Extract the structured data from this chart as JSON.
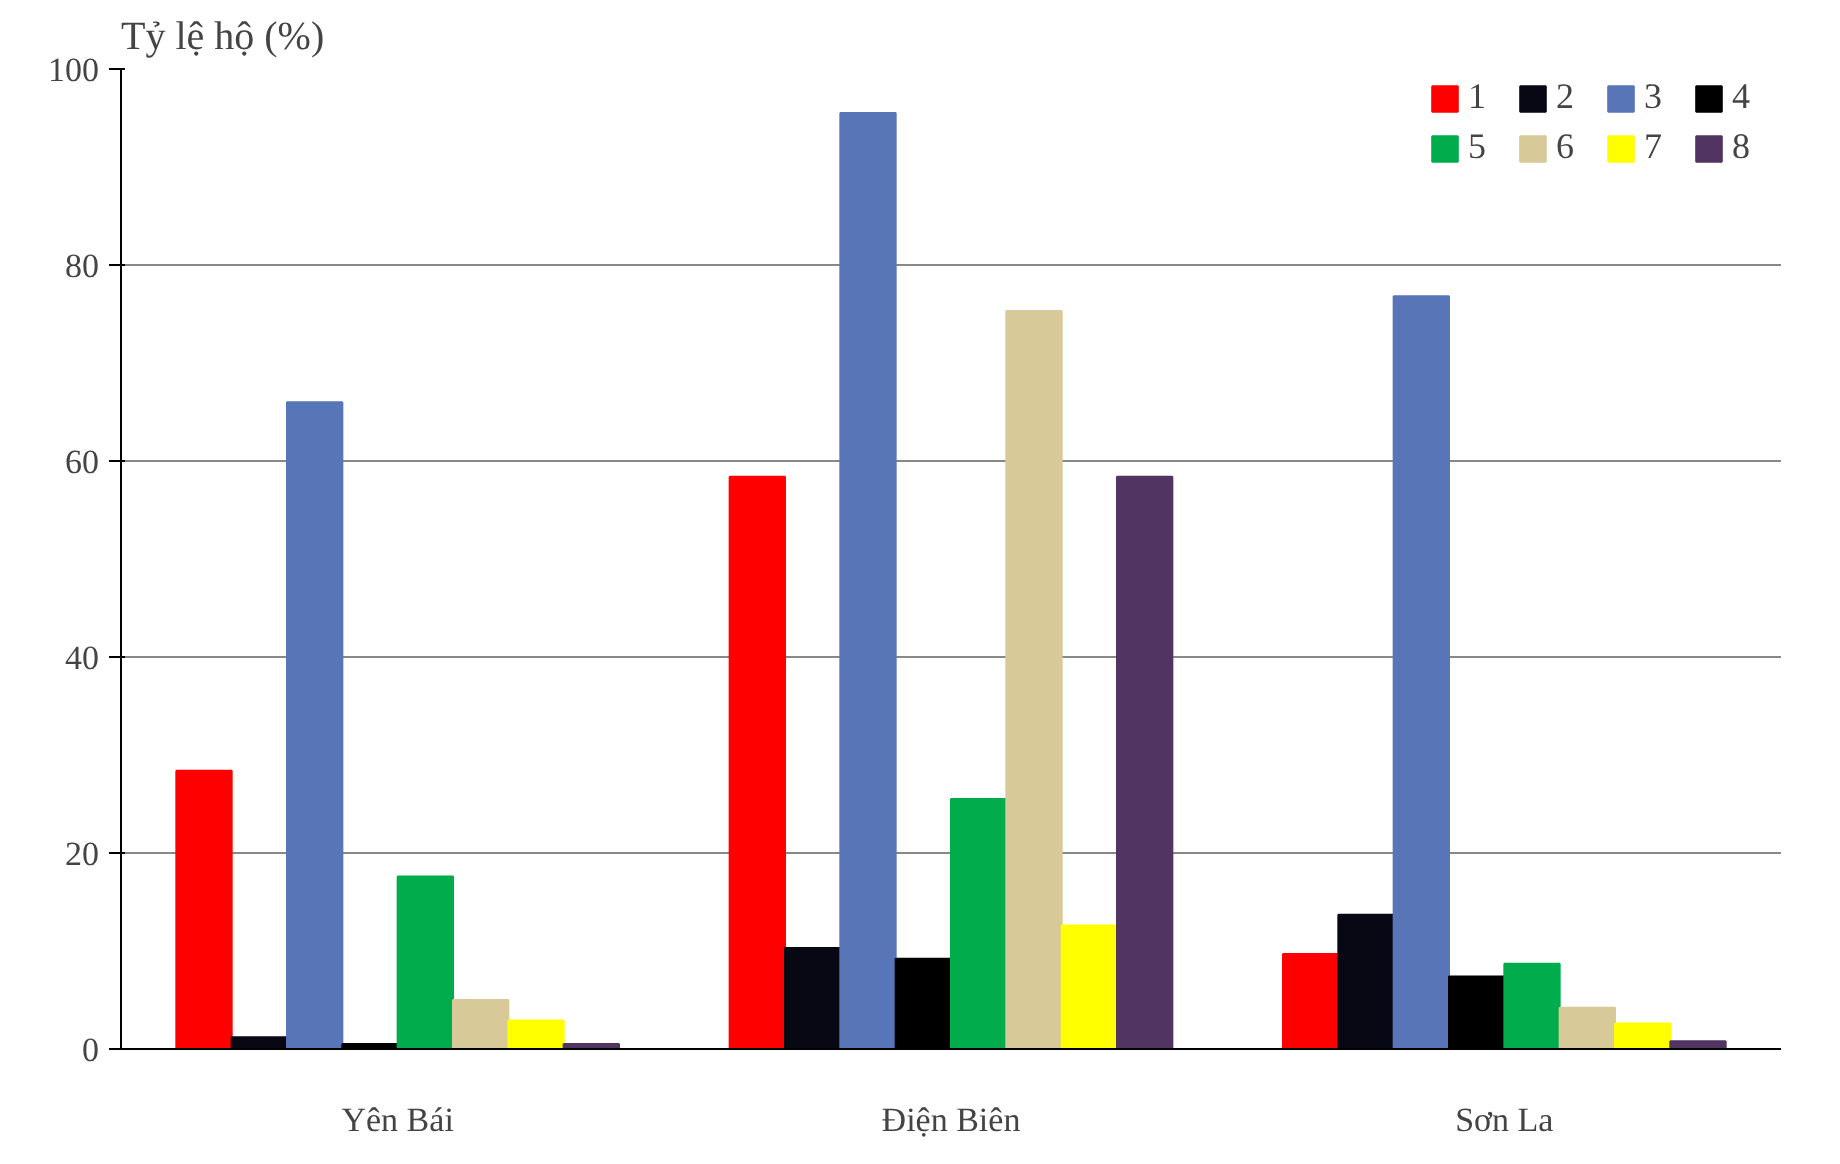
{
  "chart_data": {
    "type": "bar",
    "ylabel": "Tỷ lệ hộ (%)",
    "categories": [
      "Yên Bái",
      "Điện Biên",
      "Sơn La"
    ],
    "series": [
      {
        "name": "1",
        "color": "#ff0000",
        "values": [
          28.4,
          58.4,
          9.7
        ]
      },
      {
        "name": "2",
        "color": "#080814",
        "values": [
          1.2,
          10.3,
          13.7
        ]
      },
      {
        "name": "3",
        "color": "#5875b8",
        "values": [
          66,
          95.5,
          76.8
        ]
      },
      {
        "name": "4",
        "color": "#000000",
        "values": [
          0.5,
          9.2,
          7.4
        ]
      },
      {
        "name": "5",
        "color": "#00ac4c",
        "values": [
          17.6,
          25.5,
          8.7
        ]
      },
      {
        "name": "6",
        "color": "#d8c998",
        "values": [
          5,
          75.3,
          4.2
        ]
      },
      {
        "name": "7",
        "color": "#ffff00",
        "values": [
          2.9,
          12.6,
          2.6
        ]
      },
      {
        "name": "8",
        "color": "#523463",
        "values": [
          0.5,
          58.4,
          0.8
        ]
      }
    ],
    "ylim": [
      0,
      100
    ],
    "yticks": [
      0,
      20,
      40,
      60,
      80,
      100
    ],
    "grid": "y",
    "legend": "top right"
  }
}
